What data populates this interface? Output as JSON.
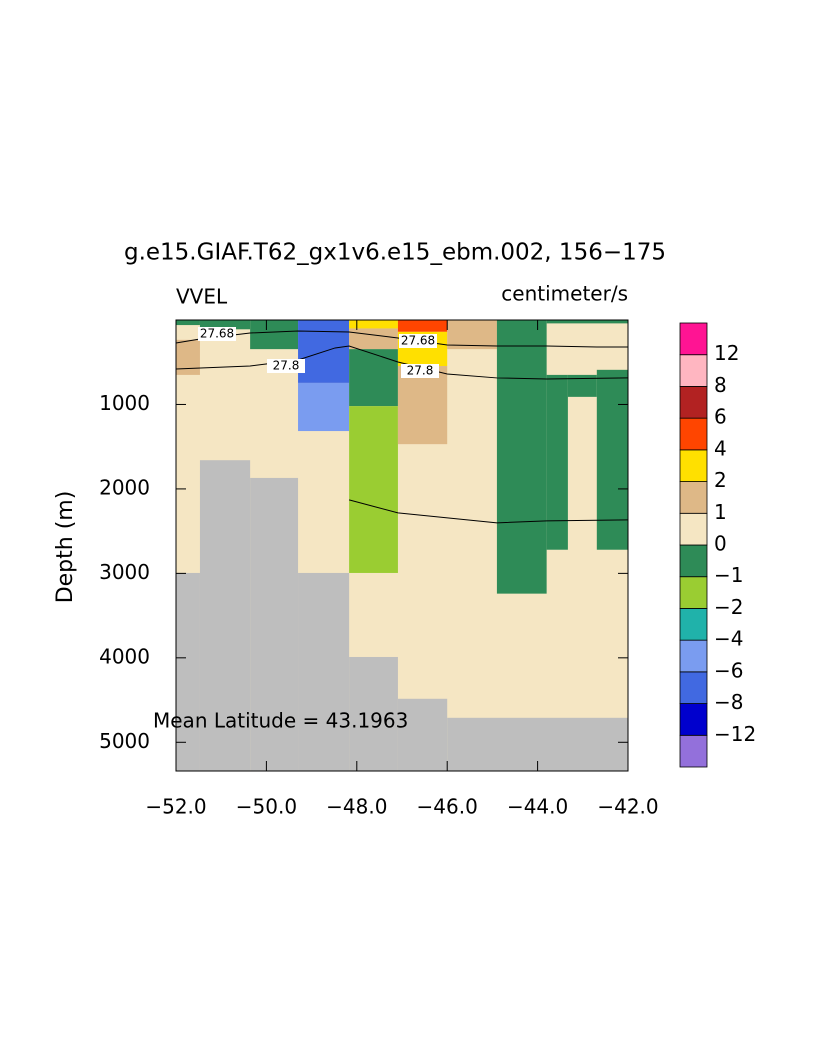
{
  "chart_data": {
    "type": "section",
    "title": "g.e15.GIAF.T62_gx1v6.e15_ebm.002, 156−175",
    "left_label": "VVEL",
    "right_label": "centimeter/s",
    "y_label": "Depth (m)",
    "annotation": "Mean Latitude = 43.1963",
    "xlim": [
      -52,
      -42
    ],
    "xticks": [
      {
        "value": -52,
        "label": "−52.0"
      },
      {
        "value": -50,
        "label": "−50.0"
      },
      {
        "value": -48,
        "label": "−48.0"
      },
      {
        "value": -46,
        "label": "−46.0"
      },
      {
        "value": -44,
        "label": "−44.0"
      },
      {
        "value": -42,
        "label": "−42.0"
      }
    ],
    "ylim": [
      0,
      5340
    ],
    "y_inverted": true,
    "yticks": [
      1000,
      2000,
      3000,
      4000,
      5000
    ],
    "background_fill": "#f5e6c3",
    "cells": [
      {
        "x": [
          -52,
          -51.47
        ],
        "depth": [
          0,
          60
        ],
        "fill": "#2e8b57"
      },
      {
        "x": [
          -52,
          -51.47
        ],
        "depth": [
          235,
          650
        ],
        "fill": "#deb887"
      },
      {
        "x": [
          -51.47,
          -50.36
        ],
        "depth": [
          0,
          110
        ],
        "fill": "#2e8b57"
      },
      {
        "x": [
          -50.36,
          -49.3
        ],
        "depth": [
          0,
          345
        ],
        "fill": "#2e8b57"
      },
      {
        "x": [
          -49.3,
          -48.17
        ],
        "depth": [
          0,
          745
        ],
        "fill": "#4169e1"
      },
      {
        "x": [
          -49.3,
          -48.17
        ],
        "depth": [
          745,
          1315
        ],
        "fill": "#7a9cf0"
      },
      {
        "x": [
          -48.17,
          -47.09
        ],
        "depth": [
          0,
          100
        ],
        "fill": "#ffe000"
      },
      {
        "x": [
          -48.17,
          -47.09
        ],
        "depth": [
          100,
          345
        ],
        "fill": "#deb887"
      },
      {
        "x": [
          -48.17,
          -47.09
        ],
        "depth": [
          345,
          1020
        ],
        "fill": "#2e8b57"
      },
      {
        "x": [
          -48.17,
          -47.09
        ],
        "depth": [
          1020,
          2995
        ],
        "fill": "#9acd32"
      },
      {
        "x": [
          -47.09,
          -46.0
        ],
        "depth": [
          0,
          140
        ],
        "fill": "#ff4500"
      },
      {
        "x": [
          -47.09,
          -46.0
        ],
        "depth": [
          140,
          545
        ],
        "fill": "#ffe000"
      },
      {
        "x": [
          -47.09,
          -46.0
        ],
        "depth": [
          545,
          1470
        ],
        "fill": "#deb887"
      },
      {
        "x": [
          -46.0,
          -44.9
        ],
        "depth": [
          0,
          345
        ],
        "fill": "#deb887"
      },
      {
        "x": [
          -44.9,
          -43.8
        ],
        "depth": [
          0,
          3240
        ],
        "fill": "#2e8b57"
      },
      {
        "x": [
          -43.8,
          -43.33
        ],
        "depth": [
          650,
          2720
        ],
        "fill": "#2e8b57"
      },
      {
        "x": [
          -43.33,
          -42.69
        ],
        "depth": [
          650,
          910
        ],
        "fill": "#2e8b57"
      },
      {
        "x": [
          -42.69,
          -42
        ],
        "depth": [
          590,
          2720
        ],
        "fill": "#2e8b57"
      },
      {
        "x": [
          -43.8,
          -42
        ],
        "depth": [
          0,
          40
        ],
        "fill": "#2e8b57"
      },
      {
        "x": [
          -52,
          -51.47
        ],
        "depth": [
          2995,
          5340
        ],
        "fill": "#bebebe"
      },
      {
        "x": [
          -51.47,
          -50.36
        ],
        "depth": [
          1660,
          5340
        ],
        "fill": "#bebebe"
      },
      {
        "x": [
          -50.36,
          -49.3
        ],
        "depth": [
          1870,
          5340
        ],
        "fill": "#bebebe"
      },
      {
        "x": [
          -49.3,
          -48.17
        ],
        "depth": [
          2995,
          5340
        ],
        "fill": "#bebebe"
      },
      {
        "x": [
          -48.17,
          -47.09
        ],
        "depth": [
          3990,
          5340
        ],
        "fill": "#bebebe"
      },
      {
        "x": [
          -47.09,
          -46.0
        ],
        "depth": [
          4485,
          5340
        ],
        "fill": "#bebebe"
      },
      {
        "x": [
          -46.0,
          -42
        ],
        "depth": [
          4710,
          5340
        ],
        "fill": "#bebebe"
      }
    ],
    "contours": [
      {
        "level": 27.68,
        "x": [
          -52,
          -51.47,
          -50.36,
          -49.3,
          -48.17,
          -47.09,
          -46.0,
          -44.9,
          -43.8,
          -42.69,
          -42
        ],
        "depth": [
          272,
          225,
          154,
          130,
          142,
          213,
          296,
          308,
          308,
          320,
          320
        ]
      },
      {
        "level": 27.8,
        "x": [
          -52,
          -50.36,
          -49.3,
          -48.48,
          -48.17,
          -47.09,
          -46.0,
          -44.9,
          -43.8,
          -42
        ],
        "depth": [
          580,
          544,
          473,
          331,
          308,
          497,
          639,
          686,
          698,
          686
        ]
      },
      {
        "x": [
          -48.17,
          -47.09,
          -44.9,
          -43.8,
          -42
        ],
        "depth": [
          2130,
          2284,
          2402,
          2378,
          2367
        ]
      }
    ],
    "colorbar": {
      "colors": [
        "#9370db",
        "#0000cd",
        "#4169e1",
        "#7a9cf0",
        "#20b2aa",
        "#9acd32",
        "#2e8b57",
        "#f5e6c3",
        "#deb887",
        "#ffe000",
        "#ff4500",
        "#b22222",
        "#ffb6c1",
        "#ff1493"
      ],
      "ticks": [
        {
          "value": -12,
          "label": "−12"
        },
        {
          "value": -8,
          "label": "−8"
        },
        {
          "value": -6,
          "label": "−6"
        },
        {
          "value": -4,
          "label": "−4"
        },
        {
          "value": -2,
          "label": "−2"
        },
        {
          "value": -1,
          "label": "−1"
        },
        0,
        1,
        2,
        4,
        6,
        8,
        12
      ]
    }
  }
}
